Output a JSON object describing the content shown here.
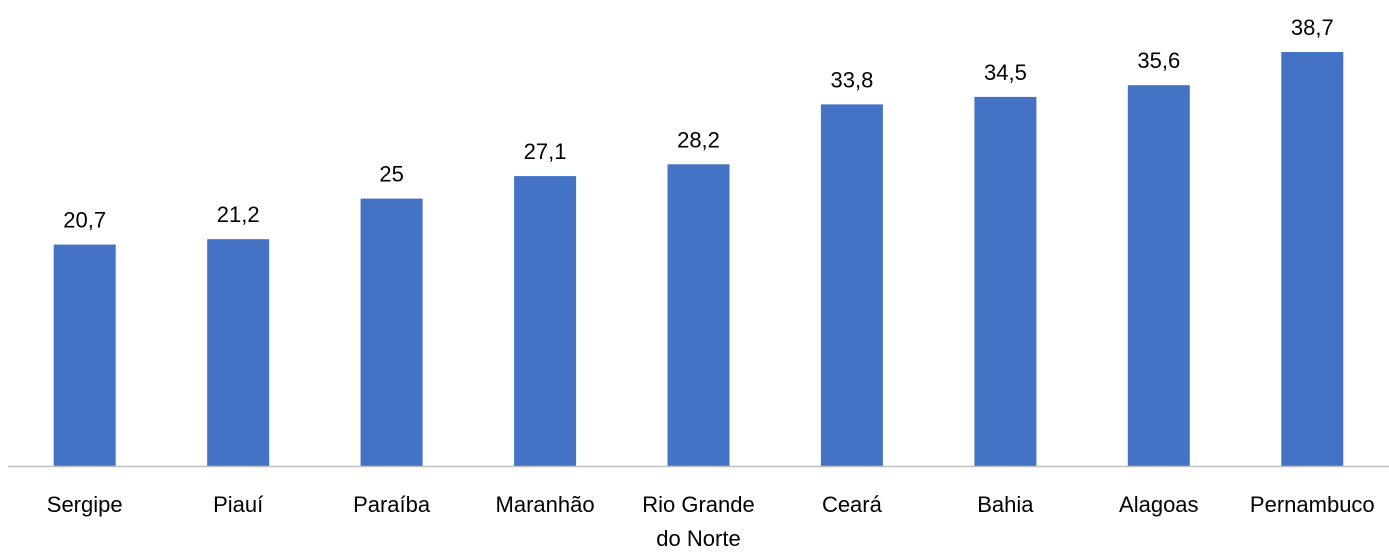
{
  "chart_data": {
    "type": "bar",
    "categories": [
      [
        "Sergipe"
      ],
      [
        "Piauí"
      ],
      [
        "Paraíba"
      ],
      [
        "Maranhão"
      ],
      [
        "Rio Grande",
        "do Norte"
      ],
      [
        "Ceará"
      ],
      [
        "Bahia"
      ],
      [
        "Alagoas"
      ],
      [
        "Pernambuco"
      ]
    ],
    "values": [
      20.7,
      21.2,
      25,
      27.1,
      28.2,
      33.8,
      34.5,
      35.6,
      38.7
    ],
    "value_labels": [
      "20,7",
      "21,2",
      "25",
      "27,1",
      "28,2",
      "33,8",
      "34,5",
      "35,6",
      "38,7"
    ],
    "title": "",
    "xlabel": "",
    "ylabel": "",
    "ylim": [
      0,
      38.7
    ],
    "grid": false,
    "legend": "none",
    "bar_color": "#4472C4",
    "axis_color": "#BFBFBF"
  }
}
